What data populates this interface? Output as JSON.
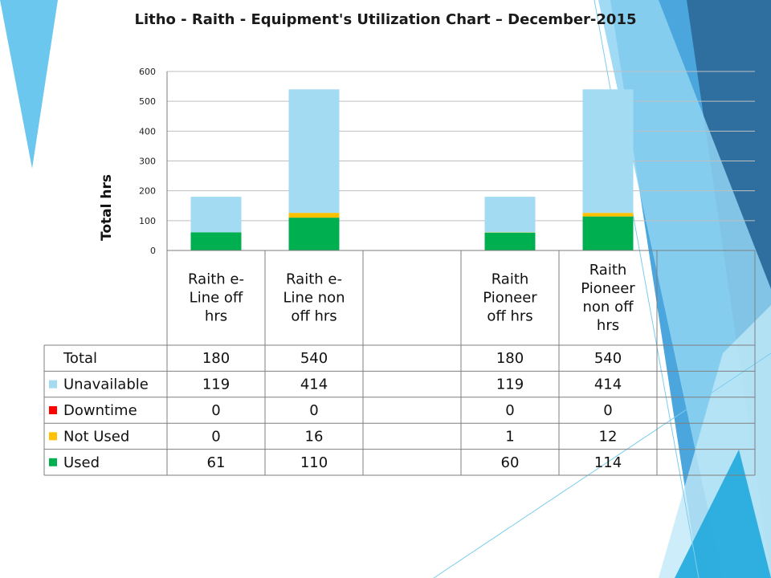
{
  "title": "Litho - Raith - Equipment's Utilization Chart – December-2015",
  "colors": {
    "unavailable": "#a3dcf2",
    "downtime": "#ff0000",
    "not_used": "#ffc000",
    "used": "#00b050",
    "grid": "#bfbfbf",
    "border": "#7f7f7f"
  },
  "chart_data": {
    "type": "bar",
    "stacked": true,
    "ylabel": "Total hrs",
    "ylim": [
      0,
      600
    ],
    "yticks": [
      0,
      100,
      200,
      300,
      400,
      500,
      600
    ],
    "grid": true,
    "categories": [
      [
        "Raith e-",
        "Line off",
        "hrs"
      ],
      [
        "Raith e-",
        "Line non",
        "off hrs"
      ],
      [
        ""
      ],
      [
        "Raith",
        "Pioneer",
        "off hrs"
      ],
      [
        "Raith",
        "Pioneer",
        "non off",
        "hrs"
      ],
      [
        ""
      ]
    ],
    "series": [
      {
        "name": "Used",
        "color": "used",
        "values": [
          61,
          110,
          null,
          60,
          114,
          null
        ]
      },
      {
        "name": "Not Used",
        "color": "not_used",
        "values": [
          0,
          16,
          null,
          1,
          12,
          null
        ]
      },
      {
        "name": "Downtime",
        "color": "downtime",
        "values": [
          0,
          0,
          null,
          0,
          0,
          null
        ]
      },
      {
        "name": "Unavailable",
        "color": "unavailable",
        "values": [
          119,
          414,
          null,
          119,
          414,
          null
        ]
      }
    ],
    "table_rows": [
      {
        "name": "Total",
        "swatch": null,
        "values": [
          "180",
          "540",
          "",
          "180",
          "540",
          ""
        ]
      },
      {
        "name": "Unavailable",
        "swatch": "unavailable",
        "values": [
          "119",
          "414",
          "",
          "119",
          "414",
          ""
        ]
      },
      {
        "name": "Downtime",
        "swatch": "downtime",
        "values": [
          "0",
          "0",
          "",
          "0",
          "0",
          ""
        ]
      },
      {
        "name": "Not Used",
        "swatch": "not_used",
        "values": [
          "0",
          "16",
          "",
          "1",
          "12",
          ""
        ]
      },
      {
        "name": "Used",
        "swatch": "used",
        "values": [
          "61",
          "110",
          "",
          "60",
          "114",
          ""
        ]
      }
    ]
  }
}
